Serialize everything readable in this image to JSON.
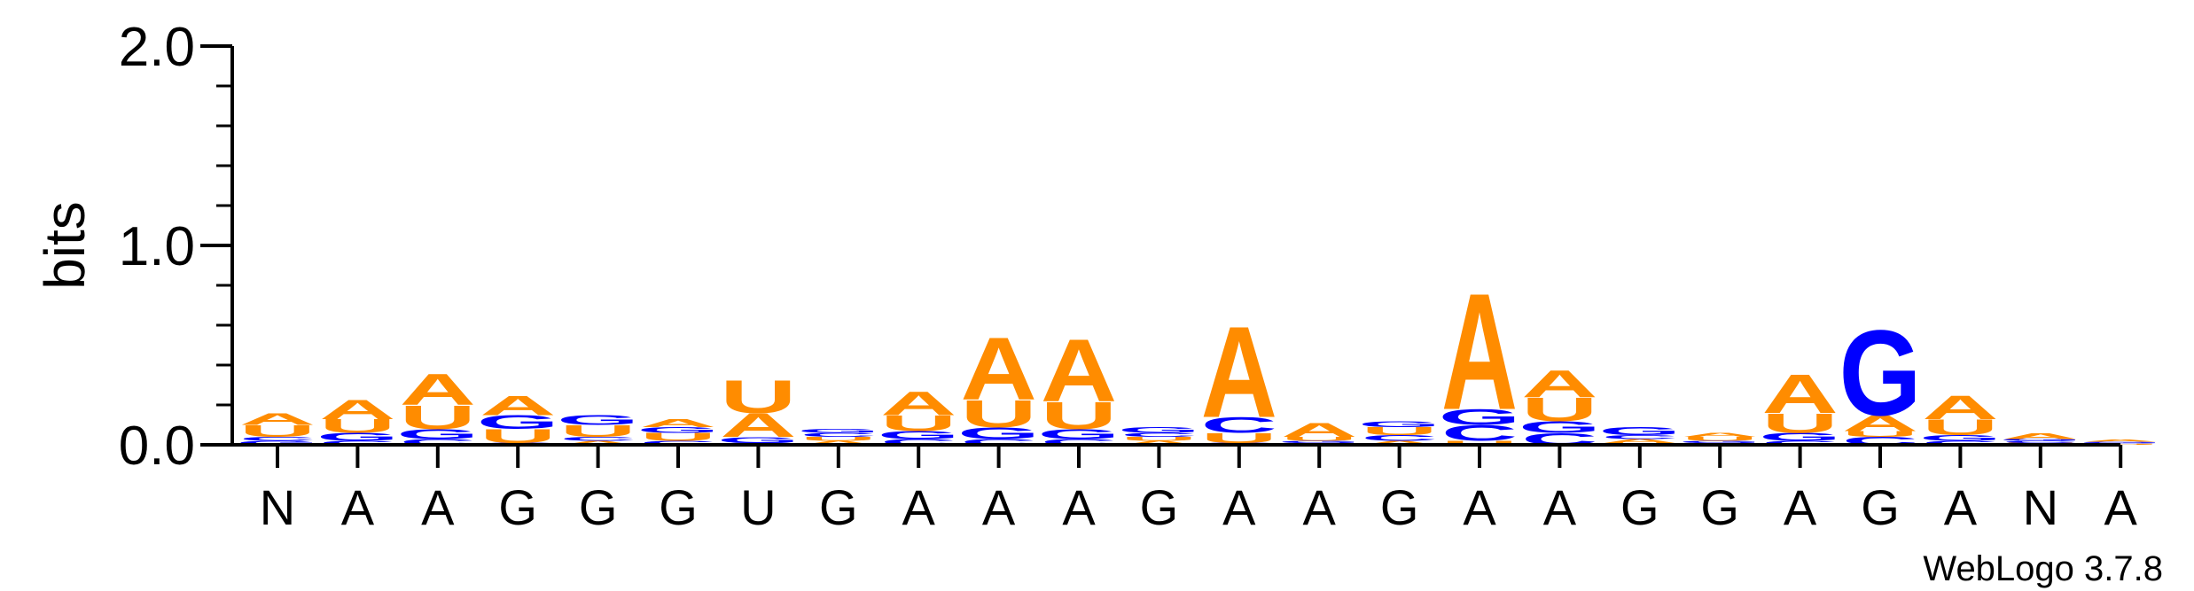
{
  "chart_data": {
    "type": "sequence-logo",
    "ylabel": "bits",
    "ylim": [
      0,
      2.0
    ],
    "yticks": [
      "0.0",
      "1.0",
      "2.0"
    ],
    "credit": "WebLogo 3.7.8",
    "colors": {
      "A": "#ff8c00",
      "U": "#ff8c00",
      "G": "#0000ff",
      "C": "#0000ff"
    },
    "positions": [
      {
        "label": "N",
        "stack": [
          [
            "G",
            0.02
          ],
          [
            "C",
            0.02
          ],
          [
            "U",
            0.06
          ],
          [
            "A",
            0.06
          ]
        ]
      },
      {
        "label": "A",
        "stack": [
          [
            "C",
            0.02
          ],
          [
            "G",
            0.04
          ],
          [
            "U",
            0.07
          ],
          [
            "A",
            0.1
          ]
        ]
      },
      {
        "label": "A",
        "stack": [
          [
            "C",
            0.03
          ],
          [
            "G",
            0.05
          ],
          [
            "U",
            0.12
          ],
          [
            "A",
            0.16
          ]
        ]
      },
      {
        "label": "G",
        "stack": [
          [
            "C",
            0.01
          ],
          [
            "U",
            0.07
          ],
          [
            "G",
            0.07
          ],
          [
            "A",
            0.1
          ]
        ]
      },
      {
        "label": "G",
        "stack": [
          [
            "A",
            0.02
          ],
          [
            "C",
            0.02
          ],
          [
            "U",
            0.06
          ],
          [
            "G",
            0.05
          ]
        ]
      },
      {
        "label": "G",
        "stack": [
          [
            "C",
            0.02
          ],
          [
            "U",
            0.04
          ],
          [
            "G",
            0.03
          ],
          [
            "A",
            0.04
          ]
        ]
      },
      {
        "label": "U",
        "stack": [
          [
            "C",
            0.01
          ],
          [
            "G",
            0.03
          ],
          [
            "A",
            0.12
          ],
          [
            "U",
            0.17
          ]
        ]
      },
      {
        "label": "G",
        "stack": [
          [
            "A",
            0.02
          ],
          [
            "U",
            0.02
          ],
          [
            "C",
            0.02
          ],
          [
            "G",
            0.02
          ]
        ]
      },
      {
        "label": "A",
        "stack": [
          [
            "C",
            0.03
          ],
          [
            "G",
            0.04
          ],
          [
            "U",
            0.08
          ],
          [
            "A",
            0.12
          ]
        ]
      },
      {
        "label": "A",
        "stack": [
          [
            "C",
            0.03
          ],
          [
            "G",
            0.06
          ],
          [
            "U",
            0.14
          ],
          [
            "A",
            0.32
          ]
        ]
      },
      {
        "label": "A",
        "stack": [
          [
            "C",
            0.03
          ],
          [
            "G",
            0.05
          ],
          [
            "U",
            0.14
          ],
          [
            "A",
            0.32
          ]
        ]
      },
      {
        "label": "G",
        "stack": [
          [
            "A",
            0.02
          ],
          [
            "U",
            0.02
          ],
          [
            "C",
            0.02
          ],
          [
            "G",
            0.03
          ]
        ]
      },
      {
        "label": "A",
        "stack": [
          [
            "G",
            0.01
          ],
          [
            "U",
            0.05
          ],
          [
            "C",
            0.08
          ],
          [
            "A",
            0.47
          ]
        ]
      },
      {
        "label": "A",
        "stack": [
          [
            "C",
            0.01
          ],
          [
            "G",
            0.01
          ],
          [
            "U",
            0.02
          ],
          [
            "A",
            0.07
          ]
        ]
      },
      {
        "label": "G",
        "stack": [
          [
            "A",
            0.02
          ],
          [
            "C",
            0.03
          ],
          [
            "U",
            0.04
          ],
          [
            "G",
            0.03
          ]
        ]
      },
      {
        "label": "A",
        "stack": [
          [
            "U",
            0.02
          ],
          [
            "C",
            0.08
          ],
          [
            "G",
            0.08
          ],
          [
            "A",
            0.6
          ]
        ]
      },
      {
        "label": "A",
        "stack": [
          [
            "C",
            0.06
          ],
          [
            "G",
            0.06
          ],
          [
            "U",
            0.12
          ],
          [
            "A",
            0.14
          ]
        ]
      },
      {
        "label": "G",
        "stack": [
          [
            "U",
            0.01
          ],
          [
            "A",
            0.02
          ],
          [
            "C",
            0.02
          ],
          [
            "G",
            0.04
          ]
        ]
      },
      {
        "label": "G",
        "stack": [
          [
            "C",
            0.01
          ],
          [
            "G",
            0.01
          ],
          [
            "U",
            0.02
          ],
          [
            "A",
            0.02
          ]
        ]
      },
      {
        "label": "A",
        "stack": [
          [
            "C",
            0.02
          ],
          [
            "G",
            0.04
          ],
          [
            "U",
            0.1
          ],
          [
            "A",
            0.2
          ]
        ]
      },
      {
        "label": "G",
        "stack": [
          [
            "C",
            0.04
          ],
          [
            "U",
            0.03
          ],
          [
            "A",
            0.08
          ],
          [
            "G",
            0.44
          ]
        ]
      },
      {
        "label": "A",
        "stack": [
          [
            "C",
            0.02
          ],
          [
            "G",
            0.03
          ],
          [
            "U",
            0.08
          ],
          [
            "A",
            0.12
          ]
        ]
      },
      {
        "label": "N",
        "stack": [
          [
            "U",
            0.01
          ],
          [
            "C",
            0.01
          ],
          [
            "G",
            0.01
          ],
          [
            "A",
            0.03
          ]
        ]
      },
      {
        "label": "A",
        "stack": [
          [
            "U",
            0.005
          ],
          [
            "C",
            0.005
          ],
          [
            "G",
            0.005
          ],
          [
            "A",
            0.01
          ]
        ]
      }
    ]
  }
}
